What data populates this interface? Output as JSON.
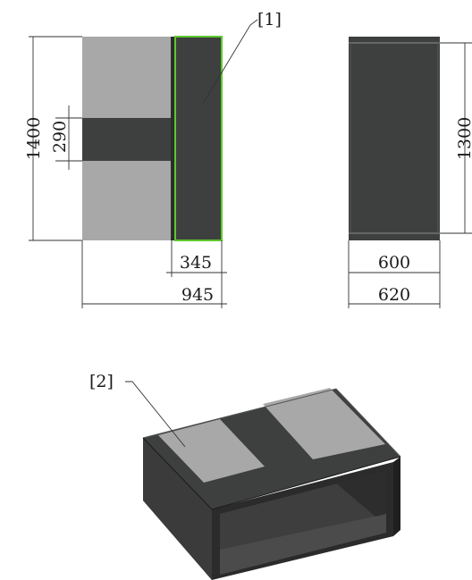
{
  "drawing": {
    "top_view": {
      "overall_height": "1400",
      "bar_height": "290",
      "right_width": "345",
      "overall_width": "945"
    },
    "side_view": {
      "height": "1300",
      "inner_width": "600",
      "outer_width": "620"
    },
    "callouts": {
      "one": "[1]",
      "two": "[2]"
    },
    "colors": {
      "dark_panel": "#3e403f",
      "light_panel": "#a8a8a8",
      "highlight": "#5cc82e",
      "line": "#333333"
    }
  }
}
